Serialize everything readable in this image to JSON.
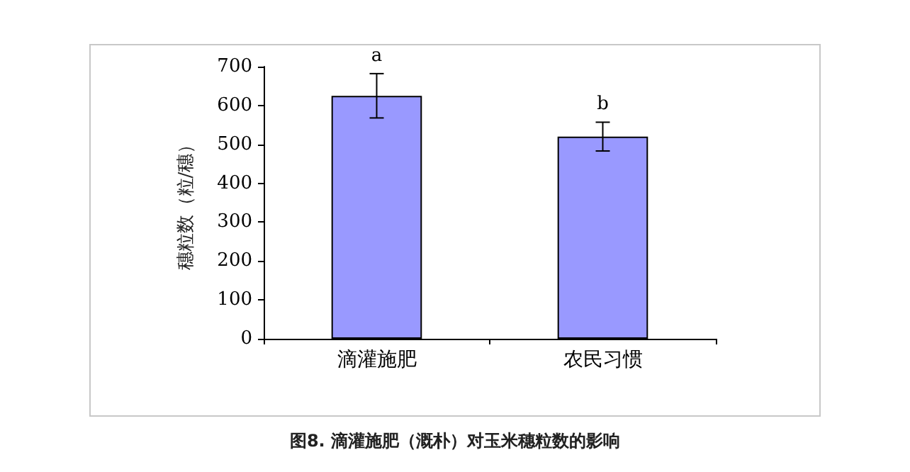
{
  "chart_data": {
    "type": "bar",
    "title": "图8. 滴灌施肥（溉朴）对玉米穗粒数的影响",
    "ylabel": "穗粒数（粒/穗）",
    "categories": [
      "滴灌施肥",
      "农民习惯"
    ],
    "values": [
      625,
      520
    ],
    "errors": [
      57,
      37
    ],
    "color": "#9999ff",
    "ylim": [
      0,
      700
    ],
    "yticks": [
      0,
      100,
      200,
      300,
      400,
      500,
      600,
      700
    ],
    "grid": false,
    "annotations": [
      {
        "text": "a",
        "x": "滴灌施肥",
        "y": 682
      },
      {
        "text": "b",
        "x": "农民习惯",
        "y": 557
      }
    ]
  }
}
